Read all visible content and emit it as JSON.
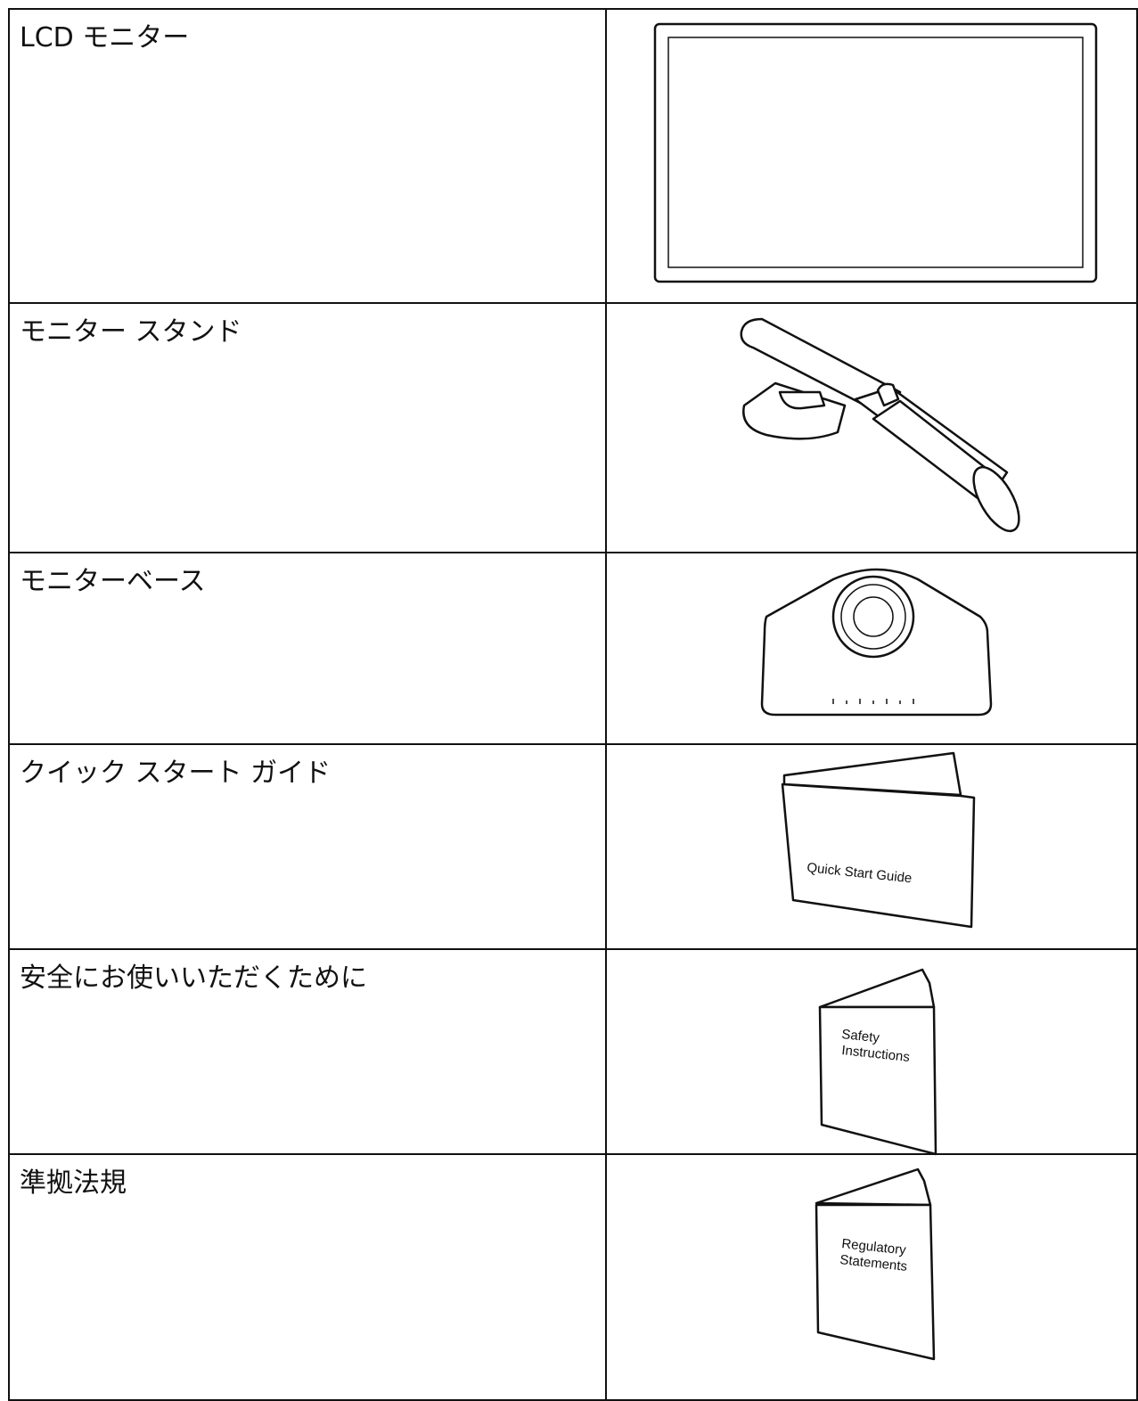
{
  "table": {
    "rows": [
      {
        "label": "LCD モニター"
      },
      {
        "label": "モニター スタンド"
      },
      {
        "label": "モニターベース"
      },
      {
        "label": "クイック スタート ガイド",
        "image_text": [
          "Quick Start Guide"
        ]
      },
      {
        "label": "安全にお使いいただくために",
        "image_text": [
          "Safety",
          "Instructions"
        ]
      },
      {
        "label": "準拠法規",
        "image_text": [
          "Regulatory",
          "Statements"
        ]
      }
    ]
  }
}
